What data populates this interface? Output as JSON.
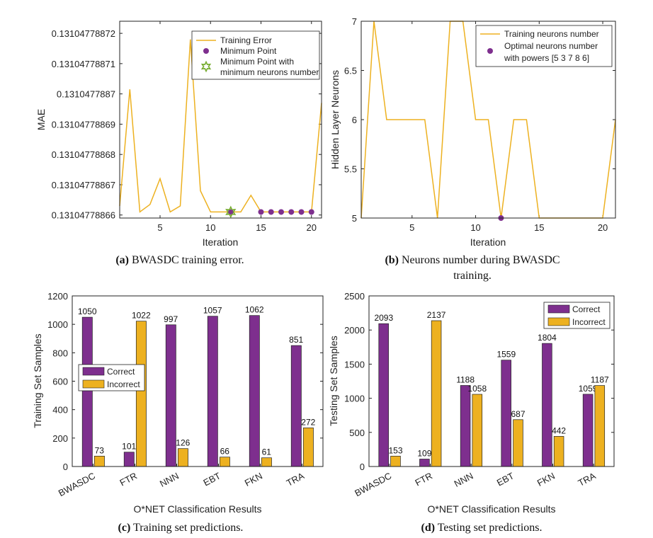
{
  "colors": {
    "orange": "#EDB120",
    "purple": "#7E2F8E",
    "green": "#77AC30"
  },
  "chart_data": [
    {
      "type": "line",
      "title": "",
      "caption": {
        "label": "(a)",
        "text": "BWASDC training error."
      },
      "xlabel": "Iteration",
      "ylabel": "MAE",
      "xlim": [
        1,
        21
      ],
      "ylim": [
        0.131047788659,
        0.131047788724
      ],
      "xticks": [
        5,
        10,
        15,
        20
      ],
      "xtick_labels": [
        "5",
        "10",
        "15",
        "20"
      ],
      "yticks": [
        0.13104778866,
        0.13104778867,
        0.13104778868,
        0.13104778869,
        0.1310477887,
        0.13104778871,
        0.13104778872
      ],
      "ytick_labels": [
        "0.13104778866",
        "0.13104778867",
        "0.13104778868",
        "0.13104778869",
        "0.1310477887",
        "0.13104778871",
        "0.13104778872"
      ],
      "series": [
        {
          "name": "Training Error",
          "x": [
            1,
            2,
            3,
            4,
            5,
            6,
            7,
            8,
            9,
            10,
            11,
            12,
            13,
            14,
            15,
            16,
            17,
            18,
            19,
            20,
            21
          ],
          "values": [
            0.131047788663,
            0.1310477887015,
            0.131047788661,
            0.1310477886635,
            0.131047788672,
            0.131047788661,
            0.131047788663,
            0.131047788718,
            0.131047788668,
            0.131047788661,
            0.131047788661,
            0.131047788661,
            0.131047788661,
            0.1310477886665,
            0.131047788661,
            0.131047788661,
            0.131047788661,
            0.131047788661,
            0.131047788661,
            0.131047788661,
            0.131047788697
          ]
        },
        {
          "name": "Minimum Point",
          "x": [
            12,
            15,
            16,
            17,
            18,
            19,
            20
          ],
          "values": [
            0.131047788661,
            0.131047788661,
            0.131047788661,
            0.131047788661,
            0.131047788661,
            0.131047788661,
            0.131047788661
          ]
        },
        {
          "name": "Minimum Point with minimum neurons number",
          "x": [
            12
          ],
          "values": [
            0.131047788661
          ]
        }
      ],
      "legend": [
        "Training Error",
        "Minimum Point",
        "Minimum Point with",
        "minimum neurons number"
      ]
    },
    {
      "type": "line",
      "title": "",
      "caption": {
        "label": "(b)",
        "text": "Neurons number during BWASDC",
        "text2": "training."
      },
      "xlabel": "Iteration",
      "ylabel": "Hidden Layer Neurons",
      "xlim": [
        1,
        21
      ],
      "ylim": [
        5,
        7
      ],
      "xticks": [
        5,
        10,
        15,
        20
      ],
      "xtick_labels": [
        "5",
        "10",
        "15",
        "20"
      ],
      "yticks": [
        5,
        5.5,
        6,
        6.5,
        7
      ],
      "ytick_labels": [
        "5",
        "5.5",
        "6",
        "6.5",
        "7"
      ],
      "series": [
        {
          "name": "Training neurons number",
          "x": [
            1,
            2,
            3,
            4,
            5,
            6,
            7,
            8,
            9,
            10,
            11,
            12,
            13,
            14,
            15,
            16,
            17,
            18,
            19,
            20,
            21
          ],
          "values": [
            5,
            7,
            6,
            6,
            6,
            6,
            5,
            7,
            7,
            6,
            6,
            5,
            6,
            6,
            5,
            5,
            5,
            5,
            5,
            5,
            6
          ]
        },
        {
          "name": "Optimal neurons number with powers [5 3 7 8 6]",
          "x": [
            12
          ],
          "values": [
            5
          ]
        }
      ],
      "legend": [
        "Training neurons number",
        "Optimal neurons number",
        "with powers [5  3  7  8  6]"
      ]
    },
    {
      "type": "bar",
      "title": "",
      "caption": {
        "label": "(c)",
        "text": "Training set predictions."
      },
      "xlabel": "O*NET Classification Results",
      "ylabel": "Training Set Samples",
      "ylim": [
        0,
        1200
      ],
      "yticks": [
        0,
        200,
        400,
        600,
        800,
        1000,
        1200
      ],
      "ytick_labels": [
        "0",
        "200",
        "400",
        "600",
        "800",
        "1000",
        "1200"
      ],
      "categories": [
        "BWASDC",
        "FTR",
        "NNN",
        "EBT",
        "FKN",
        "TRA"
      ],
      "series": [
        {
          "name": "Correct",
          "values": [
            1050,
            101,
            997,
            1057,
            1062,
            851
          ]
        },
        {
          "name": "Incorrect",
          "values": [
            73,
            1022,
            126,
            66,
            61,
            272
          ]
        }
      ],
      "value_labels": [
        [
          "1050",
          "101",
          "997",
          "1057",
          "1062",
          "851"
        ],
        [
          "73",
          "1022",
          "126",
          "66",
          "61",
          "272"
        ]
      ],
      "legend": [
        "Correct",
        "Incorrect"
      ]
    },
    {
      "type": "bar",
      "title": "",
      "caption": {
        "label": "(d)",
        "text": "Testing set predictions."
      },
      "xlabel": "O*NET Classification Results",
      "ylabel": "Testing Set Samples",
      "ylim": [
        0,
        2500
      ],
      "yticks": [
        0,
        500,
        1000,
        1500,
        2000,
        2500
      ],
      "ytick_labels": [
        "0",
        "500",
        "1000",
        "1500",
        "2000",
        "2500"
      ],
      "categories": [
        "BWASDC",
        "FTR",
        "NNN",
        "EBT",
        "FKN",
        "TRA"
      ],
      "series": [
        {
          "name": "Correct",
          "values": [
            2093,
            109,
            1188,
            1559,
            1804,
            1059
          ]
        },
        {
          "name": "Incorrect",
          "values": [
            153,
            2137,
            1058,
            687,
            442,
            1187
          ]
        }
      ],
      "value_labels": [
        [
          "2093",
          "109",
          "1188",
          "1559",
          "1804",
          "1059"
        ],
        [
          "153",
          "2137",
          "1058",
          "687",
          "442",
          "1187"
        ]
      ],
      "legend": [
        "Correct",
        "Incorrect"
      ]
    }
  ]
}
